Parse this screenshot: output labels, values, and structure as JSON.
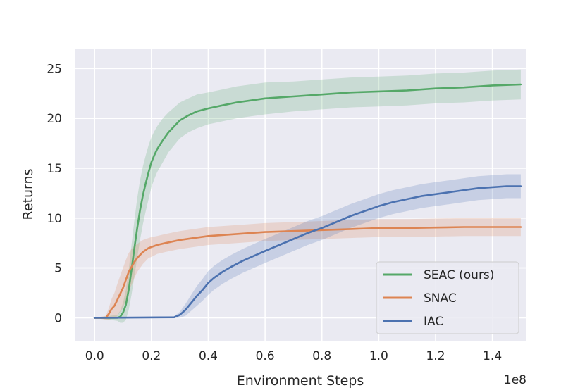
{
  "chart_data": {
    "type": "line",
    "title": "",
    "xlabel": "Environment Steps",
    "ylabel": "Returns",
    "x_scale_label": "1e8",
    "xlim": [
      -0.07,
      1.52
    ],
    "ylim": [
      -2.3,
      27
    ],
    "xticks": [
      0.0,
      0.2,
      0.4,
      0.6,
      0.8,
      1.0,
      1.2,
      1.4
    ],
    "xtick_labels": [
      "0.0",
      "0.2",
      "0.4",
      "0.6",
      "0.8",
      "1.0",
      "1.2",
      "1.4"
    ],
    "yticks": [
      0,
      5,
      10,
      15,
      20,
      25
    ],
    "ytick_labels": [
      "0",
      "5",
      "10",
      "15",
      "20",
      "25"
    ],
    "grid": true,
    "legend_position": "bottom-right",
    "series": [
      {
        "name": "SEAC (ours)",
        "color": "#55a868",
        "x": [
          0.0,
          0.08,
          0.09,
          0.1,
          0.11,
          0.12,
          0.13,
          0.14,
          0.15,
          0.16,
          0.17,
          0.18,
          0.19,
          0.2,
          0.21,
          0.22,
          0.24,
          0.26,
          0.28,
          0.3,
          0.33,
          0.36,
          0.4,
          0.45,
          0.5,
          0.55,
          0.6,
          0.7,
          0.8,
          0.9,
          1.0,
          1.1,
          1.2,
          1.3,
          1.4,
          1.5
        ],
        "y": [
          0.0,
          0.0,
          0.1,
          0.5,
          1.3,
          2.8,
          4.8,
          7.0,
          9.0,
          10.8,
          12.3,
          13.5,
          14.6,
          15.6,
          16.3,
          16.9,
          17.8,
          18.6,
          19.2,
          19.8,
          20.3,
          20.7,
          21.0,
          21.3,
          21.6,
          21.8,
          22.0,
          22.2,
          22.4,
          22.6,
          22.7,
          22.8,
          23.0,
          23.1,
          23.3,
          23.4
        ],
        "band": [
          0.0,
          0.3,
          0.6,
          1.0,
          1.5,
          2.0,
          2.5,
          2.8,
          3.0,
          3.0,
          2.9,
          2.8,
          2.7,
          2.5,
          2.4,
          2.3,
          2.2,
          2.0,
          1.9,
          1.8,
          1.7,
          1.7,
          1.6,
          1.6,
          1.6,
          1.6,
          1.6,
          1.5,
          1.5,
          1.5,
          1.5,
          1.5,
          1.5,
          1.5,
          1.5,
          1.5
        ]
      },
      {
        "name": "SNAC",
        "color": "#dd8452",
        "x": [
          0.0,
          0.04,
          0.05,
          0.06,
          0.07,
          0.08,
          0.09,
          0.1,
          0.11,
          0.12,
          0.13,
          0.14,
          0.15,
          0.16,
          0.17,
          0.18,
          0.19,
          0.2,
          0.22,
          0.25,
          0.3,
          0.35,
          0.4,
          0.5,
          0.6,
          0.7,
          0.8,
          0.9,
          1.0,
          1.1,
          1.2,
          1.3,
          1.4,
          1.5
        ],
        "y": [
          0.0,
          0.0,
          0.4,
          0.9,
          1.2,
          1.8,
          2.4,
          3.0,
          3.8,
          4.6,
          5.1,
          5.6,
          6.0,
          6.3,
          6.6,
          6.8,
          7.0,
          7.1,
          7.3,
          7.5,
          7.8,
          8.0,
          8.2,
          8.4,
          8.6,
          8.7,
          8.8,
          8.9,
          9.0,
          9.0,
          9.05,
          9.1,
          9.1,
          9.1
        ],
        "band": [
          0.0,
          0.2,
          0.6,
          1.0,
          1.3,
          1.6,
          1.8,
          2.0,
          2.0,
          1.9,
          1.8,
          1.6,
          1.4,
          1.3,
          1.2,
          1.1,
          1.0,
          1.0,
          0.9,
          0.9,
          0.9,
          0.9,
          0.9,
          0.9,
          0.9,
          0.9,
          0.9,
          0.9,
          0.9,
          0.9,
          0.9,
          0.9,
          0.9,
          0.9
        ]
      },
      {
        "name": "IAC",
        "color": "#4c72b0",
        "x": [
          0.0,
          0.28,
          0.3,
          0.32,
          0.34,
          0.36,
          0.38,
          0.4,
          0.42,
          0.45,
          0.48,
          0.52,
          0.56,
          0.6,
          0.65,
          0.7,
          0.75,
          0.8,
          0.85,
          0.9,
          0.95,
          1.0,
          1.05,
          1.1,
          1.15,
          1.2,
          1.25,
          1.3,
          1.35,
          1.4,
          1.45,
          1.5
        ],
        "y": [
          0.0,
          0.05,
          0.3,
          0.8,
          1.5,
          2.2,
          2.8,
          3.5,
          4.0,
          4.6,
          5.1,
          5.7,
          6.2,
          6.7,
          7.3,
          7.9,
          8.5,
          9.0,
          9.6,
          10.2,
          10.7,
          11.2,
          11.6,
          11.9,
          12.2,
          12.4,
          12.6,
          12.8,
          13.0,
          13.1,
          13.2,
          13.2
        ],
        "band": [
          0.0,
          0.1,
          0.3,
          0.6,
          0.8,
          1.0,
          1.1,
          1.2,
          1.2,
          1.2,
          1.2,
          1.2,
          1.2,
          1.2,
          1.2,
          1.2,
          1.2,
          1.2,
          1.2,
          1.2,
          1.2,
          1.2,
          1.2,
          1.2,
          1.2,
          1.2,
          1.2,
          1.2,
          1.2,
          1.2,
          1.2,
          1.2
        ]
      }
    ]
  }
}
